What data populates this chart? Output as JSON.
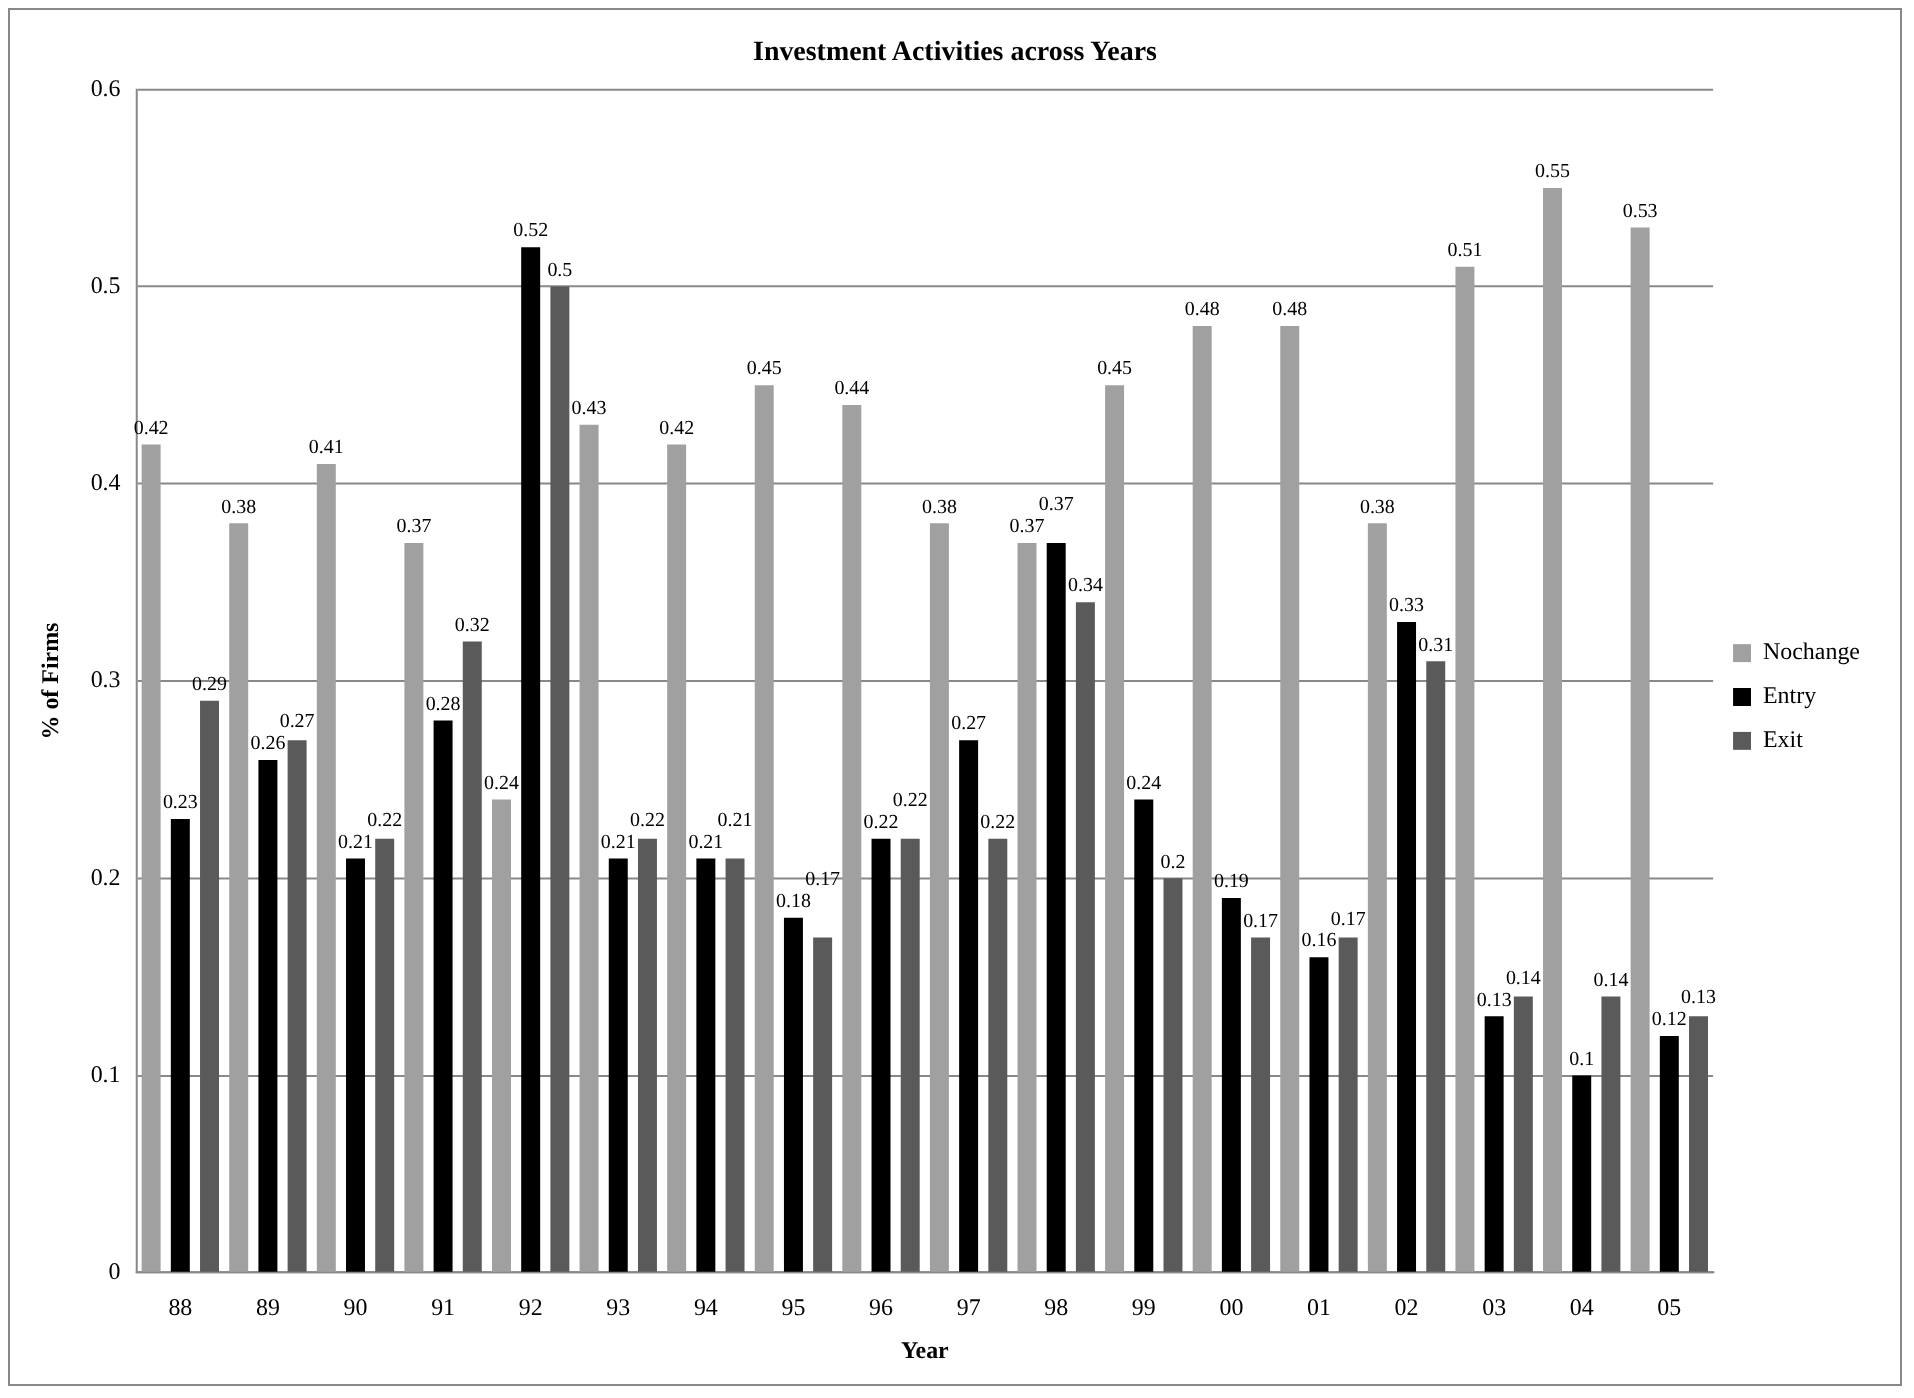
{
  "chart_data": {
    "type": "bar",
    "title": "Investment Activities across Years",
    "xlabel": "Year",
    "ylabel": "% of Firms",
    "categories": [
      "88",
      "89",
      "90",
      "91",
      "92",
      "93",
      "94",
      "95",
      "96",
      "97",
      "98",
      "99",
      "00",
      "01",
      "02",
      "03",
      "04",
      "05"
    ],
    "series": [
      {
        "name": "Nochange",
        "color": "#a0a0a0",
        "values": [
          0.42,
          0.38,
          0.41,
          0.37,
          0.24,
          0.43,
          0.42,
          0.45,
          0.44,
          0.38,
          0.37,
          0.45,
          0.48,
          0.48,
          0.38,
          0.51,
          0.55,
          0.53
        ]
      },
      {
        "name": "Entry",
        "color": "#000000",
        "values": [
          0.23,
          0.26,
          0.21,
          0.28,
          0.52,
          0.21,
          0.21,
          0.18,
          0.22,
          0.27,
          0.37,
          0.24,
          0.19,
          0.16,
          0.33,
          0.13,
          0.1,
          0.12
        ]
      },
      {
        "name": "Exit",
        "color": "#5a5a5a",
        "values": [
          0.29,
          0.27,
          0.22,
          0.32,
          0.5,
          0.22,
          0.21,
          0.17,
          0.22,
          0.22,
          0.34,
          0.2,
          0.17,
          0.17,
          0.31,
          0.14,
          0.14,
          0.13
        ]
      }
    ],
    "ylim": [
      0,
      0.6
    ],
    "yticks": [
      0,
      0.1,
      0.2,
      0.3,
      0.4,
      0.5,
      0.6
    ],
    "grid": "y",
    "legend": "right",
    "data_labels": true
  }
}
